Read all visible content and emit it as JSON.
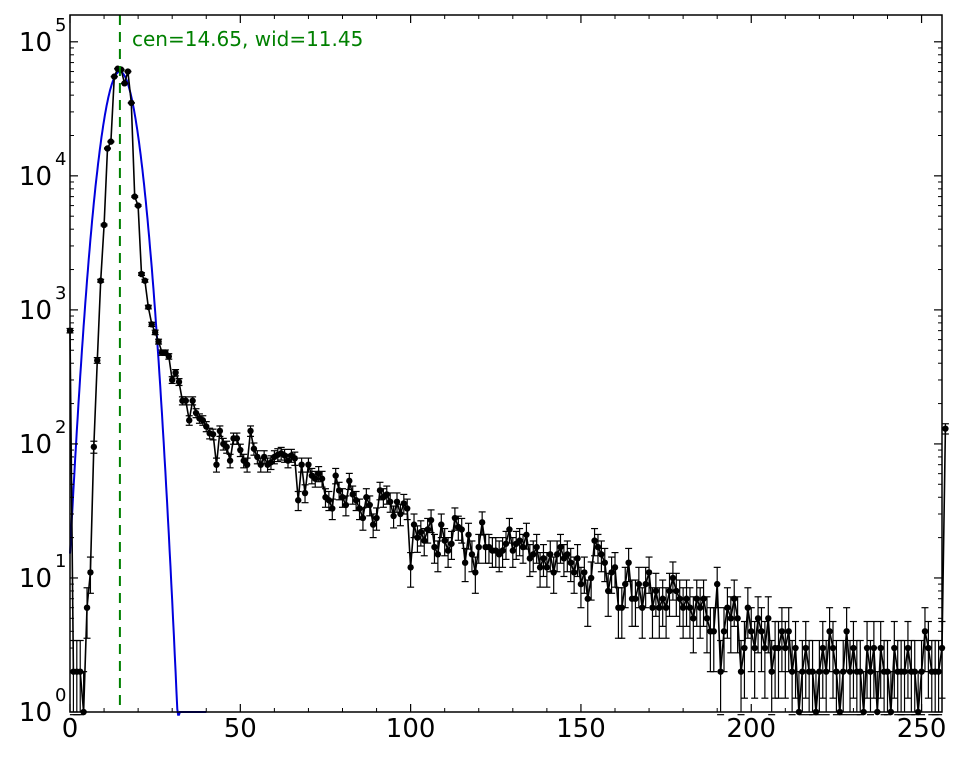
{
  "chart_data": {
    "type": "line",
    "title": "",
    "xlabel": "",
    "ylabel": "",
    "xlim": [
      0,
      256
    ],
    "ylim_log10": [
      0,
      5.2
    ],
    "y_scale": "log",
    "grid": false,
    "x_ticks": [
      0,
      50,
      100,
      150,
      200,
      250
    ],
    "x_tick_labels": [
      "0",
      "50",
      "100",
      "150",
      "200",
      "250"
    ],
    "y_ticks": [
      {
        "base": "10",
        "exp": "0",
        "log": 0
      },
      {
        "base": "10",
        "exp": "1",
        "log": 1
      },
      {
        "base": "10",
        "exp": "2",
        "log": 2
      },
      {
        "base": "10",
        "exp": "3",
        "log": 3
      },
      {
        "base": "10",
        "exp": "4",
        "log": 4
      },
      {
        "base": "10",
        "exp": "5",
        "log": 5
      }
    ],
    "annotation": "cen=14.65, wid=11.45",
    "center_line": {
      "x": 14.65,
      "color": "#008000"
    },
    "fit": {
      "color": "#0000dd",
      "peak": 60000,
      "center": 14.65,
      "sigma": 3.6
    },
    "data_color": "#000000",
    "data_series": {
      "name": "",
      "points": [
        [
          0,
          700
        ],
        [
          1,
          2
        ],
        [
          2,
          2
        ],
        [
          3,
          2
        ],
        [
          4,
          1
        ],
        [
          5,
          6
        ],
        [
          6,
          11
        ],
        [
          7,
          95
        ],
        [
          8,
          420
        ],
        [
          9,
          1650
        ],
        [
          10,
          4300
        ],
        [
          11,
          16000
        ],
        [
          12,
          18000
        ],
        [
          13,
          55000
        ],
        [
          14,
          63000
        ],
        [
          15,
          62000
        ],
        [
          16,
          49000
        ],
        [
          17,
          60000
        ],
        [
          18,
          35000
        ],
        [
          19,
          7000
        ],
        [
          20,
          6000
        ],
        [
          21,
          1850
        ],
        [
          22,
          1650
        ],
        [
          23,
          1050
        ],
        [
          24,
          780
        ],
        [
          25,
          680
        ],
        [
          26,
          580
        ],
        [
          27,
          480
        ],
        [
          28,
          480
        ],
        [
          29,
          450
        ],
        [
          30,
          300
        ],
        [
          31,
          340
        ],
        [
          32,
          290
        ],
        [
          33,
          210
        ],
        [
          34,
          210
        ],
        [
          35,
          150
        ],
        [
          36,
          210
        ],
        [
          37,
          170
        ],
        [
          38,
          155
        ],
        [
          39,
          150
        ],
        [
          40,
          135
        ],
        [
          41,
          120
        ],
        [
          42,
          118
        ],
        [
          43,
          70
        ],
        [
          44,
          125
        ],
        [
          45,
          100
        ],
        [
          46,
          95
        ],
        [
          47,
          75
        ],
        [
          48,
          110
        ],
        [
          49,
          110
        ],
        [
          50,
          90
        ],
        [
          51,
          75
        ],
        [
          52,
          70
        ],
        [
          53,
          125
        ],
        [
          54,
          92
        ],
        [
          55,
          80
        ],
        [
          56,
          70
        ],
        [
          57,
          80
        ],
        [
          58,
          70
        ],
        [
          59,
          73
        ],
        [
          60,
          80
        ],
        [
          61,
          83
        ],
        [
          62,
          85
        ],
        [
          63,
          82
        ],
        [
          64,
          75
        ],
        [
          65,
          82
        ],
        [
          66,
          78
        ],
        [
          67,
          38
        ],
        [
          68,
          70
        ],
        [
          69,
          43
        ],
        [
          70,
          70
        ],
        [
          71,
          58
        ],
        [
          72,
          55
        ],
        [
          73,
          60
        ],
        [
          74,
          55
        ],
        [
          75,
          40
        ],
        [
          76,
          38
        ],
        [
          77,
          33
        ],
        [
          78,
          58
        ],
        [
          79,
          45
        ],
        [
          80,
          40
        ],
        [
          81,
          35
        ],
        [
          82,
          53
        ],
        [
          83,
          42
        ],
        [
          84,
          38
        ],
        [
          85,
          33
        ],
        [
          86,
          28
        ],
        [
          87,
          40
        ],
        [
          88,
          35
        ],
        [
          89,
          25
        ],
        [
          90,
          28
        ],
        [
          91,
          45
        ],
        [
          92,
          40
        ],
        [
          93,
          42
        ],
        [
          94,
          37
        ],
        [
          95,
          29
        ],
        [
          96,
          37
        ],
        [
          97,
          30
        ],
        [
          98,
          36
        ],
        [
          99,
          33
        ],
        [
          100,
          12
        ],
        [
          101,
          25
        ],
        [
          102,
          20
        ],
        [
          103,
          22
        ],
        [
          104,
          19
        ],
        [
          105,
          23
        ],
        [
          106,
          27
        ],
        [
          107,
          17
        ],
        [
          108,
          15
        ],
        [
          109,
          25
        ],
        [
          110,
          19
        ],
        [
          111,
          16
        ],
        [
          112,
          18
        ],
        [
          113,
          28
        ],
        [
          114,
          24
        ],
        [
          115,
          23
        ],
        [
          116,
          13
        ],
        [
          117,
          21
        ],
        [
          118,
          15
        ],
        [
          119,
          11
        ],
        [
          120,
          17
        ],
        [
          121,
          26
        ],
        [
          122,
          17
        ],
        [
          123,
          17
        ],
        [
          124,
          16
        ],
        [
          125,
          16
        ],
        [
          126,
          15
        ],
        [
          127,
          16
        ],
        [
          128,
          18
        ],
        [
          129,
          23
        ],
        [
          130,
          16
        ],
        [
          131,
          18
        ],
        [
          132,
          19
        ],
        [
          133,
          17
        ],
        [
          134,
          21
        ],
        [
          135,
          14
        ],
        [
          136,
          15
        ],
        [
          137,
          17
        ],
        [
          138,
          12
        ],
        [
          139,
          14
        ],
        [
          140,
          12
        ],
        [
          141,
          15
        ],
        [
          142,
          11
        ],
        [
          143,
          15
        ],
        [
          144,
          17
        ],
        [
          145,
          14
        ],
        [
          146,
          15
        ],
        [
          147,
          13
        ],
        [
          148,
          11
        ],
        [
          149,
          14
        ],
        [
          150,
          9
        ],
        [
          151,
          11
        ],
        [
          152,
          7
        ],
        [
          153,
          10
        ],
        [
          154,
          19
        ],
        [
          155,
          17
        ],
        [
          156,
          15
        ],
        [
          157,
          13
        ],
        [
          158,
          8
        ],
        [
          159,
          11
        ],
        [
          160,
          12
        ],
        [
          161,
          6
        ],
        [
          162,
          6
        ],
        [
          163,
          9
        ],
        [
          164,
          13
        ],
        [
          165,
          7
        ],
        [
          166,
          7
        ],
        [
          167,
          9
        ],
        [
          168,
          6
        ],
        [
          169,
          9
        ],
        [
          170,
          11
        ],
        [
          171,
          6
        ],
        [
          172,
          8
        ],
        [
          173,
          6
        ],
        [
          174,
          7
        ],
        [
          175,
          6
        ],
        [
          176,
          8
        ],
        [
          177,
          10
        ],
        [
          178,
          8
        ],
        [
          179,
          7
        ],
        [
          180,
          6
        ],
        [
          181,
          7
        ],
        [
          182,
          6
        ],
        [
          183,
          5
        ],
        [
          184,
          7
        ],
        [
          185,
          6
        ],
        [
          186,
          7
        ],
        [
          187,
          5
        ],
        [
          188,
          4
        ],
        [
          189,
          4
        ],
        [
          190,
          9
        ],
        [
          191,
          2
        ],
        [
          192,
          4
        ],
        [
          193,
          6
        ],
        [
          194,
          5
        ],
        [
          195,
          7
        ],
        [
          196,
          5
        ],
        [
          197,
          2
        ],
        [
          198,
          3
        ],
        [
          199,
          6
        ],
        [
          200,
          4
        ],
        [
          201,
          3
        ],
        [
          202,
          5
        ],
        [
          203,
          4
        ],
        [
          204,
          3
        ],
        [
          205,
          5
        ],
        [
          206,
          2
        ],
        [
          207,
          3
        ],
        [
          208,
          3
        ],
        [
          209,
          4
        ],
        [
          210,
          3
        ],
        [
          211,
          4
        ],
        [
          212,
          2
        ],
        [
          213,
          3
        ],
        [
          214,
          1
        ],
        [
          215,
          2
        ],
        [
          216,
          3
        ],
        [
          217,
          2
        ],
        [
          218,
          2
        ],
        [
          219,
          1
        ],
        [
          220,
          2
        ],
        [
          221,
          3
        ],
        [
          222,
          2
        ],
        [
          223,
          4
        ],
        [
          224,
          3
        ],
        [
          225,
          2
        ],
        [
          226,
          1
        ],
        [
          227,
          2
        ],
        [
          228,
          4
        ],
        [
          229,
          2
        ],
        [
          230,
          3
        ],
        [
          231,
          2
        ],
        [
          232,
          2
        ],
        [
          233,
          1
        ],
        [
          234,
          3
        ],
        [
          235,
          2
        ],
        [
          236,
          3
        ],
        [
          237,
          1
        ],
        [
          238,
          3
        ],
        [
          239,
          2
        ],
        [
          240,
          2
        ],
        [
          241,
          1
        ],
        [
          242,
          3
        ],
        [
          243,
          2
        ],
        [
          244,
          2
        ],
        [
          245,
          2
        ],
        [
          246,
          3
        ],
        [
          247,
          2
        ],
        [
          248,
          2
        ],
        [
          249,
          1
        ],
        [
          250,
          2
        ],
        [
          251,
          4
        ],
        [
          252,
          3
        ],
        [
          253,
          2
        ],
        [
          254,
          2
        ],
        [
          255,
          2
        ],
        [
          256,
          3
        ],
        [
          257,
          130
        ]
      ]
    }
  }
}
